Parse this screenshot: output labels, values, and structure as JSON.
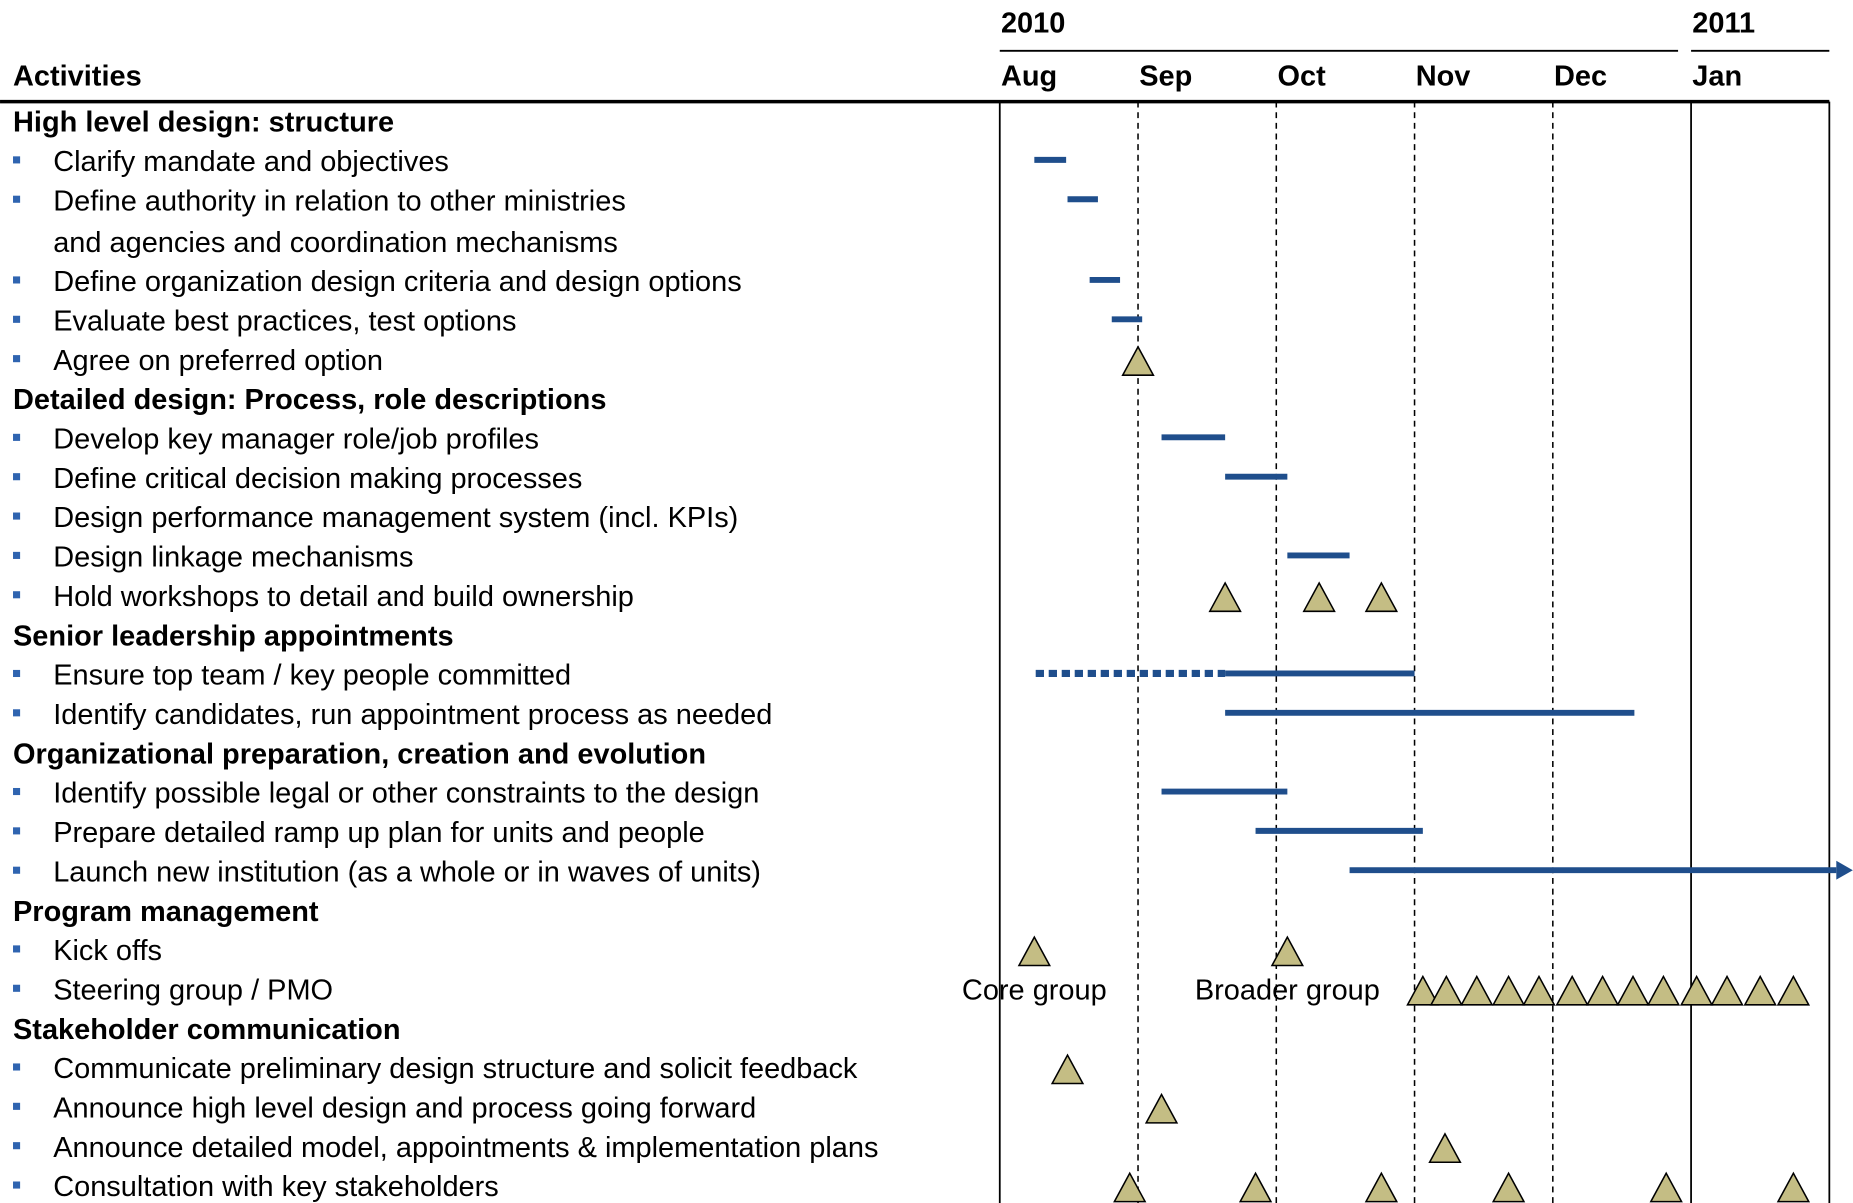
{
  "header": {
    "column_title": "Activities",
    "years": [
      {
        "label": "2010",
        "month": 0
      },
      {
        "label": "2011",
        "month": 5
      }
    ],
    "months": [
      "Aug",
      "Sep",
      "Oct",
      "Nov",
      "Dec",
      "Jan"
    ]
  },
  "colors": {
    "bar": "#1f4e8c",
    "milestone": "#c4bd84",
    "bullet": "#2f64b0"
  },
  "groups": [
    {
      "title": "High level design: structure",
      "items": [
        {
          "lines": [
            "Clarify mandate and objectives"
          ],
          "bars": [
            {
              "start": 0.25,
              "end": 0.48
            }
          ]
        },
        {
          "lines": [
            "Define authority in relation to other ministries",
            "and agencies and coordination mechanisms"
          ],
          "bars": [
            {
              "start": 0.49,
              "end": 0.71
            }
          ]
        },
        {
          "lines": [
            "Define organization design criteria and design options"
          ],
          "bars": [
            {
              "start": 0.65,
              "end": 0.87
            }
          ]
        },
        {
          "lines": [
            "Evaluate best practices, test options"
          ],
          "bars": [
            {
              "start": 0.81,
              "end": 1.03
            }
          ]
        },
        {
          "lines": [
            "Agree on preferred option"
          ],
          "milestones": [
            1.0
          ]
        }
      ]
    },
    {
      "title": "Detailed design: Process, role descriptions",
      "items": [
        {
          "lines": [
            "Develop key manager role/job profiles"
          ],
          "bars": [
            {
              "start": 1.17,
              "end": 1.63
            }
          ]
        },
        {
          "lines": [
            "Define critical decision making processes"
          ],
          "bars": [
            {
              "start": 1.63,
              "end": 2.08
            }
          ]
        },
        {
          "lines": [
            "Design performance management system (incl. KPIs)"
          ]
        },
        {
          "lines": [
            "Design linkage mechanisms"
          ],
          "bars": [
            {
              "start": 2.08,
              "end": 2.53
            }
          ]
        },
        {
          "lines": [
            "Hold workshops to detail and build ownership"
          ],
          "milestones": [
            1.63,
            2.31,
            2.76
          ]
        }
      ]
    },
    {
      "title": "Senior leadership appointments",
      "items": [
        {
          "lines": [
            "Ensure top team / key people committed"
          ],
          "bars": [
            {
              "start": 0.26,
              "end": 1.63,
              "style": "dotted"
            },
            {
              "start": 1.63,
              "end": 3.0
            }
          ]
        },
        {
          "lines": [
            "Identify candidates, run appointment process as needed"
          ],
          "bars": [
            {
              "start": 1.63,
              "end": 4.59
            }
          ]
        }
      ]
    },
    {
      "title": "Organizational preparation, creation and evolution",
      "items": [
        {
          "lines": [
            "Identify possible legal or other constraints to the design"
          ],
          "bars": [
            {
              "start": 1.17,
              "end": 2.08
            }
          ]
        },
        {
          "lines": [
            "Prepare detailed ramp up plan for units and people"
          ],
          "bars": [
            {
              "start": 1.85,
              "end": 3.06
            }
          ]
        },
        {
          "lines": [
            "Launch new institution (as a whole or in waves of units)"
          ],
          "bars": [
            {
              "start": 2.53,
              "end": 6.17,
              "arrow": true
            }
          ]
        }
      ]
    },
    {
      "title": "Program management",
      "items": [
        {
          "lines": [
            "Kick offs"
          ],
          "milestones": [
            0.25,
            2.08
          ]
        },
        {
          "lines": [
            "Steering group / PMO"
          ],
          "notes": [
            {
              "text": "Core group",
              "at": 0.25
            },
            {
              "text": "Broader group",
              "at": 2.08
            }
          ],
          "milestones": [
            3.06,
            3.23,
            3.45,
            3.68,
            3.9,
            4.14,
            4.36,
            4.58,
            4.8,
            5.04,
            5.26,
            5.5,
            5.74
          ]
        }
      ]
    },
    {
      "title": "Stakeholder communication",
      "items": [
        {
          "lines": [
            "Communicate preliminary design structure and solicit feedback"
          ],
          "milestones": [
            0.49
          ]
        },
        {
          "lines": [
            "Announce high level design and process going forward"
          ],
          "milestones": [
            1.17
          ]
        },
        {
          "lines": [
            "Announce detailed model, appointments & implementation plans"
          ],
          "milestones": [
            3.22
          ]
        },
        {
          "lines": [
            "Consultation with key stakeholders"
          ],
          "milestones": [
            0.94,
            1.85,
            2.76,
            3.68,
            4.82,
            5.74
          ]
        }
      ]
    }
  ]
}
